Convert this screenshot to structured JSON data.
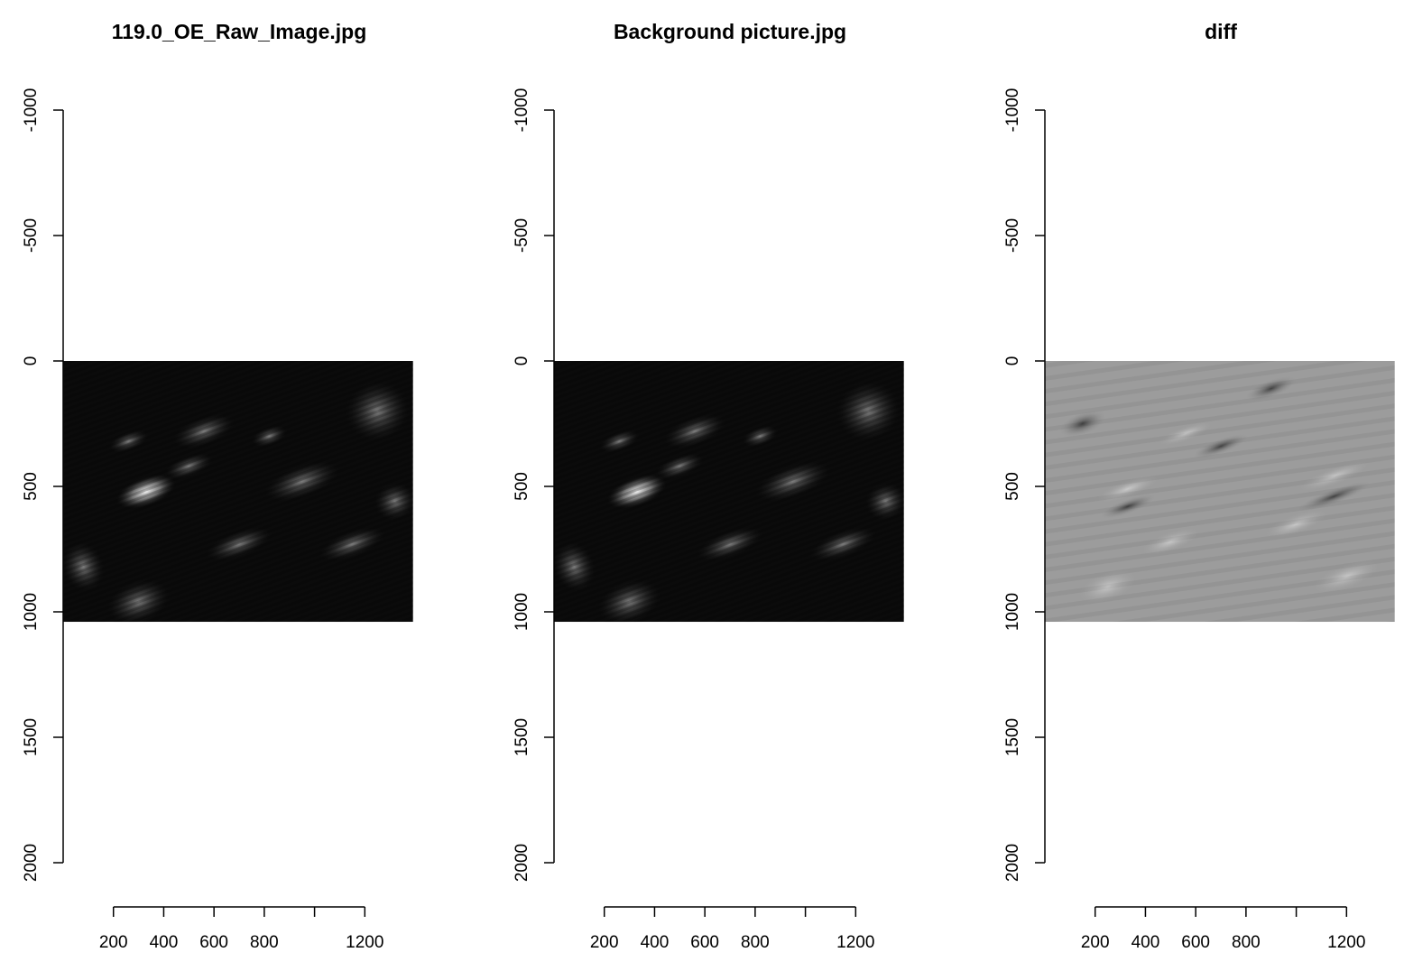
{
  "chart_data": [
    {
      "type": "heatmap",
      "title": "119.0_OE_Raw_Image.jpg",
      "xlabel": "",
      "ylabel": "",
      "xticks": [
        200,
        400,
        600,
        800,
        1000,
        1200
      ],
      "xtick_labels": [
        "200",
        "400",
        "600",
        "800",
        "",
        "1200"
      ],
      "xlim": [
        0,
        1400
      ],
      "yticks": [
        -1000,
        -500,
        0,
        500,
        1000,
        1500,
        2000
      ],
      "ytick_labels": [
        "-1000",
        "-500",
        "0",
        "500",
        "1000",
        "1500",
        "2000"
      ],
      "ylim": [
        -1000,
        2000
      ],
      "image_extent": {
        "x": [
          0,
          1392
        ],
        "y": [
          0,
          1040
        ]
      },
      "colormap": "grayscale",
      "tone": "dark",
      "grid": false
    },
    {
      "type": "heatmap",
      "title": "Background picture.jpg",
      "xlabel": "",
      "ylabel": "",
      "xticks": [
        200,
        400,
        600,
        800,
        1000,
        1200
      ],
      "xtick_labels": [
        "200",
        "400",
        "600",
        "800",
        "",
        "1200"
      ],
      "xlim": [
        0,
        1400
      ],
      "yticks": [
        -1000,
        -500,
        0,
        500,
        1000,
        1500,
        2000
      ],
      "ytick_labels": [
        "-1000",
        "-500",
        "0",
        "500",
        "1000",
        "1500",
        "2000"
      ],
      "ylim": [
        -1000,
        2000
      ],
      "image_extent": {
        "x": [
          0,
          1392
        ],
        "y": [
          0,
          1040
        ]
      },
      "colormap": "grayscale",
      "tone": "dark",
      "grid": false
    },
    {
      "type": "heatmap",
      "title": "diff",
      "xlabel": "",
      "ylabel": "",
      "xticks": [
        200,
        400,
        600,
        800,
        1000,
        1200
      ],
      "xtick_labels": [
        "200",
        "400",
        "600",
        "800",
        "",
        "1200"
      ],
      "xlim": [
        0,
        1400
      ],
      "yticks": [
        -1000,
        -500,
        0,
        500,
        1000,
        1500,
        2000
      ],
      "ytick_labels": [
        "-1000",
        "-500",
        "0",
        "500",
        "1000",
        "1500",
        "2000"
      ],
      "ylim": [
        -1000,
        2000
      ],
      "image_extent": {
        "x": [
          0,
          1392
        ],
        "y": [
          0,
          1040
        ]
      },
      "colormap": "grayscale",
      "tone": "mid-gray",
      "grid": false
    }
  ]
}
